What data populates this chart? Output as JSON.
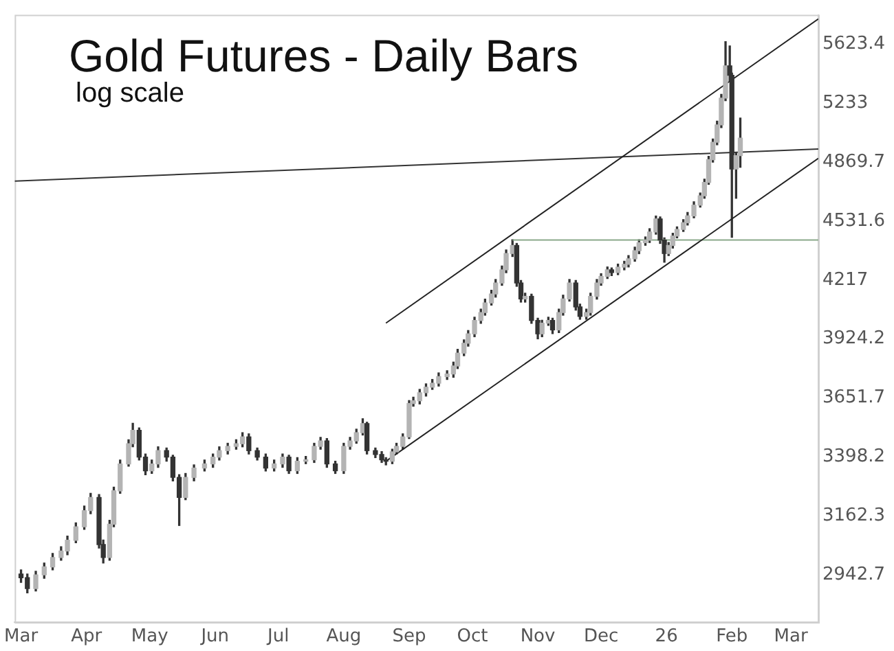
{
  "chart_data": {
    "type": "candlestick",
    "title": "Gold Futures - Daily Bars",
    "subtitle": "log scale",
    "log": true,
    "grid": false,
    "legend": false,
    "color": "#333333",
    "colors": [
      "#333333",
      "#333333",
      "#b4b4b4",
      "#b4b4b4",
      "#b4b4b4",
      "#b4b4b4",
      "#b4b4b4",
      "#b4b4b4",
      "#b4b4b4",
      "#b4b4b4",
      "#333333",
      "#333333",
      "#b4b4b4",
      "#b4b4b4",
      "#b4b4b4",
      "#b4b4b4",
      "#b4b4b4",
      "#333333",
      "#333333",
      "#b4b4b4",
      "#b4b4b4",
      "#333333",
      "#333333",
      "#333333",
      "#b4b4b4",
      "#b4b4b4",
      "#b4b4b4",
      "#b4b4b4",
      "#b4b4b4",
      "#b4b4b4",
      "#b4b4b4",
      "#b4b4b4",
      "#333333",
      "#333333",
      "#333333",
      "#b4b4b4",
      "#b4b4b4",
      "#333333",
      "#b4b4b4",
      "#b4b4b4",
      "#b4b4b4",
      "#b4b4b4",
      "#333333",
      "#333333",
      "#b4b4b4",
      "#b4b4b4",
      "#b4b4b4",
      "#b4b4b4",
      "#333333",
      "#333333",
      "#333333",
      "#333333",
      "#b4b4b4",
      "#b4b4b4",
      "#b4b4b4",
      "#b4b4b4",
      "#b4b4b4",
      "#b4b4b4",
      "#b4b4b4",
      "#b4b4b4",
      "#b4b4b4",
      "#b4b4b4",
      "#b4b4b4",
      "#b4b4b4",
      "#b4b4b4",
      "#b4b4b4",
      "#b4b4b4",
      "#b4b4b4",
      "#b4b4b4",
      "#b4b4b4",
      "#b4b4b4",
      "#b4b4b4",
      "#b4b4b4",
      "#b4b4b4",
      "#333333",
      "#333333",
      "#b4b4b4",
      "#333333",
      "#333333",
      "#b4b4b4",
      "#b4b4b4",
      "#333333",
      "#b4b4b4",
      "#b4b4b4",
      "#b4b4b4",
      "#333333",
      "#333333",
      "#b4b4b4",
      "#b4b4b4",
      "#b4b4b4",
      "#b4b4b4",
      "#b4b4b4",
      "#333333",
      "#b4b4b4",
      "#b4b4b4",
      "#b4b4b4",
      "#b4b4b4",
      "#b4b4b4",
      "#b4b4b4",
      "#b4b4b4",
      "#b4b4b4",
      "#333333",
      "#333333",
      "#b4b4b4",
      "#b4b4b4",
      "#b4b4b4",
      "#b4b4b4",
      "#b4b4b4",
      "#b4b4b4",
      "#b4b4b4",
      "#b4b4b4",
      "#b4b4b4",
      "#b4b4b4",
      "#b4b4b4",
      "#b4b4b4",
      "#b4b4b4",
      "#333333",
      "#333333",
      "#b4b4b4",
      "#b4b4b4"
    ],
    "x": [
      "2025-03-01",
      "2025-03-04",
      "2025-03-08",
      "2025-03-12",
      "2025-03-16",
      "2025-03-20",
      "2025-03-23",
      "2025-03-27",
      "2025-03-31",
      "2025-04-03",
      "2025-04-07",
      "2025-04-09",
      "2025-04-12",
      "2025-04-14",
      "2025-04-17",
      "2025-04-21",
      "2025-04-23",
      "2025-04-26",
      "2025-04-29",
      "2025-05-02",
      "2025-05-05",
      "2025-05-09",
      "2025-05-12",
      "2025-05-15",
      "2025-05-18",
      "2025-05-22",
      "2025-05-27",
      "2025-05-31",
      "2025-06-03",
      "2025-06-07",
      "2025-06-11",
      "2025-06-14",
      "2025-06-17",
      "2025-06-21",
      "2025-06-25",
      "2025-06-29",
      "2025-07-03",
      "2025-07-06",
      "2025-07-10",
      "2025-07-14",
      "2025-07-18",
      "2025-07-21",
      "2025-07-24",
      "2025-07-28",
      "2025-08-01",
      "2025-08-04",
      "2025-08-07",
      "2025-08-10",
      "2025-08-12",
      "2025-08-16",
      "2025-08-19",
      "2025-08-21",
      "2025-08-24",
      "2025-08-26",
      "2025-08-29",
      "2025-09-01",
      "2025-09-03",
      "2025-09-06",
      "2025-09-09",
      "2025-09-12",
      "2025-09-15",
      "2025-09-19",
      "2025-09-22",
      "2025-09-24",
      "2025-09-27",
      "2025-09-29",
      "2025-10-02",
      "2025-10-05",
      "2025-10-07",
      "2025-10-10",
      "2025-10-12",
      "2025-10-15",
      "2025-10-17",
      "2025-10-20",
      "2025-10-22",
      "2025-10-24",
      "2025-10-26",
      "2025-10-29",
      "2025-11-01",
      "2025-11-03",
      "2025-11-06",
      "2025-11-08",
      "2025-11-11",
      "2025-11-13",
      "2025-11-16",
      "2025-11-19",
      "2025-11-21",
      "2025-11-24",
      "2025-11-26",
      "2025-11-29",
      "2025-12-01",
      "2025-12-04",
      "2025-12-06",
      "2025-12-09",
      "2025-12-12",
      "2025-12-14",
      "2025-12-17",
      "2025-12-19",
      "2025-12-22",
      "2025-12-24",
      "2025-12-27",
      "2025-12-29",
      "2025-12-31",
      "2026-01-02",
      "2026-01-04",
      "2026-01-06",
      "2026-01-09",
      "2026-01-11",
      "2026-01-14",
      "2026-01-17",
      "2026-01-19",
      "2026-01-21",
      "2026-01-23",
      "2026-01-25",
      "2026-01-27",
      "2026-01-29",
      "2026-01-31",
      "2026-02-01",
      "2026-02-03",
      "2026-02-05"
    ],
    "ohlc": [
      [
        2945,
        2960,
        2915,
        2932
      ],
      [
        2932,
        2945,
        2878,
        2893
      ],
      [
        2893,
        2955,
        2885,
        2942
      ],
      [
        2942,
        2985,
        2930,
        2971
      ],
      [
        2971,
        3020,
        2960,
        3005
      ],
      [
        3005,
        3045,
        2995,
        3029
      ],
      [
        3029,
        3085,
        3015,
        3069
      ],
      [
        3069,
        3135,
        3060,
        3120
      ],
      [
        3120,
        3200,
        3110,
        3182
      ],
      [
        3182,
        3250,
        3170,
        3234
      ],
      [
        3234,
        3245,
        3040,
        3053
      ],
      [
        3053,
        3070,
        2985,
        3005
      ],
      [
        3005,
        3145,
        2995,
        3130
      ],
      [
        3130,
        3275,
        3120,
        3260
      ],
      [
        3260,
        3385,
        3250,
        3369
      ],
      [
        3369,
        3470,
        3360,
        3453
      ],
      [
        3453,
        3540,
        3440,
        3510
      ],
      [
        3510,
        3520,
        3385,
        3397
      ],
      [
        3397,
        3410,
        3325,
        3341
      ],
      [
        3341,
        3385,
        3330,
        3369
      ],
      [
        3369,
        3440,
        3355,
        3424
      ],
      [
        3424,
        3435,
        3380,
        3397
      ],
      [
        3397,
        3405,
        3300,
        3314
      ],
      [
        3314,
        3325,
        3125,
        3234
      ],
      [
        3234,
        3330,
        3225,
        3314
      ],
      [
        3314,
        3365,
        3300,
        3352
      ],
      [
        3352,
        3385,
        3340,
        3369
      ],
      [
        3369,
        3410,
        3355,
        3397
      ],
      [
        3397,
        3440,
        3385,
        3424
      ],
      [
        3424,
        3455,
        3410,
        3442
      ],
      [
        3442,
        3470,
        3430,
        3453
      ],
      [
        3453,
        3500,
        3440,
        3482
      ],
      [
        3482,
        3495,
        3410,
        3424
      ],
      [
        3424,
        3435,
        3385,
        3397
      ],
      [
        3397,
        3410,
        3340,
        3352
      ],
      [
        3352,
        3385,
        3340,
        3369
      ],
      [
        3369,
        3410,
        3355,
        3397
      ],
      [
        3397,
        3405,
        3330,
        3341
      ],
      [
        3341,
        3395,
        3330,
        3380
      ],
      [
        3380,
        3400,
        3370,
        3386
      ],
      [
        3386,
        3455,
        3375,
        3442
      ],
      [
        3442,
        3480,
        3430,
        3465
      ],
      [
        3465,
        3475,
        3355,
        3369
      ],
      [
        3369,
        3380,
        3330,
        3341
      ],
      [
        3341,
        3455,
        3330,
        3442
      ],
      [
        3442,
        3480,
        3430,
        3465
      ],
      [
        3465,
        3515,
        3455,
        3500
      ],
      [
        3500,
        3560,
        3490,
        3539
      ],
      [
        3539,
        3545,
        3410,
        3424
      ],
      [
        3424,
        3435,
        3395,
        3408
      ],
      [
        3408,
        3420,
        3375,
        3386
      ],
      [
        3386,
        3395,
        3365,
        3380
      ],
      [
        3380,
        3430,
        3370,
        3419
      ],
      [
        3419,
        3455,
        3410,
        3442
      ],
      [
        3442,
        3495,
        3430,
        3482
      ],
      [
        3482,
        3640,
        3475,
        3627
      ],
      [
        3627,
        3655,
        3615,
        3639
      ],
      [
        3639,
        3690,
        3625,
        3675
      ],
      [
        3675,
        3715,
        3660,
        3700
      ],
      [
        3700,
        3735,
        3690,
        3718
      ],
      [
        3718,
        3765,
        3705,
        3748
      ],
      [
        3748,
        3775,
        3735,
        3760
      ],
      [
        3760,
        3815,
        3745,
        3797
      ],
      [
        3797,
        3875,
        3785,
        3857
      ],
      [
        3857,
        3920,
        3845,
        3904
      ],
      [
        3904,
        3965,
        3890,
        3949
      ],
      [
        3949,
        4030,
        3935,
        4014
      ],
      [
        4014,
        4070,
        4000,
        4053
      ],
      [
        4053,
        4120,
        4040,
        4101
      ],
      [
        4101,
        4165,
        4090,
        4146
      ],
      [
        4146,
        4220,
        4130,
        4202
      ],
      [
        4202,
        4290,
        4190,
        4270
      ],
      [
        4270,
        4375,
        4255,
        4356
      ],
      [
        4356,
        4430,
        4340,
        4399
      ],
      [
        4399,
        4410,
        4185,
        4202
      ],
      [
        4202,
        4215,
        4105,
        4121
      ],
      [
        4121,
        4150,
        4105,
        4134
      ],
      [
        4134,
        4145,
        4000,
        4014
      ],
      [
        4014,
        4025,
        3925,
        3949
      ],
      [
        3949,
        4015,
        3935,
        4001
      ],
      [
        4001,
        4030,
        3990,
        4014
      ],
      [
        4014,
        4025,
        3950,
        3968
      ],
      [
        3968,
        4070,
        3955,
        4053
      ],
      [
        4053,
        4140,
        4040,
        4121
      ],
      [
        4121,
        4220,
        4110,
        4202
      ],
      [
        4202,
        4215,
        4065,
        4081
      ],
      [
        4081,
        4095,
        4020,
        4034
      ],
      [
        4034,
        4070,
        4020,
        4053
      ],
      [
        4053,
        4150,
        4040,
        4134
      ],
      [
        4134,
        4220,
        4120,
        4202
      ],
      [
        4202,
        4250,
        4190,
        4236
      ],
      [
        4236,
        4285,
        4225,
        4270
      ],
      [
        4270,
        4280,
        4240,
        4256
      ],
      [
        4256,
        4300,
        4245,
        4284
      ],
      [
        4284,
        4315,
        4270,
        4299
      ],
      [
        4299,
        4345,
        4285,
        4328
      ],
      [
        4328,
        4390,
        4315,
        4371
      ],
      [
        4371,
        4430,
        4355,
        4414
      ],
      [
        4414,
        4445,
        4400,
        4428
      ],
      [
        4428,
        4490,
        4415,
        4472
      ],
      [
        4472,
        4560,
        4460,
        4544
      ],
      [
        4544,
        4555,
        4410,
        4428
      ],
      [
        4428,
        4440,
        4310,
        4356
      ],
      [
        4356,
        4415,
        4345,
        4399
      ],
      [
        4399,
        4465,
        4385,
        4450
      ],
      [
        4450,
        4500,
        4440,
        4486
      ],
      [
        4486,
        4540,
        4475,
        4523
      ],
      [
        4523,
        4580,
        4510,
        4561
      ],
      [
        4561,
        4640,
        4550,
        4621
      ],
      [
        4621,
        4690,
        4610,
        4674
      ],
      [
        4674,
        4770,
        4660,
        4751
      ],
      [
        4751,
        4905,
        4740,
        4885
      ],
      [
        4885,
        5010,
        4870,
        4990
      ],
      [
        4990,
        5120,
        4975,
        5097
      ],
      [
        5097,
        5290,
        5080,
        5266
      ],
      [
        5266,
        5642,
        5250,
        5478
      ],
      [
        5478,
        5613,
        5380,
        5415
      ],
      [
        5415,
        5430,
        4443,
        4830
      ],
      [
        4830,
        4930,
        4660,
        4909
      ],
      [
        4909,
        5140,
        4840,
        5015
      ]
    ],
    "series": [
      {
        "type": "line",
        "color": "#222222",
        "x": [
          "2025-08-21",
          "2026-03-14"
        ],
        "values": [
          4001,
          5801
        ]
      },
      {
        "type": "line",
        "color": "#222222",
        "x": [
          "2025-08-21",
          "2026-03-14"
        ],
        "values": [
          3380,
          4893
        ]
      },
      {
        "type": "line",
        "color": "#8aa88a",
        "x": [
          "2025-10-20",
          "2026-03-14"
        ],
        "values": [
          4428,
          4428
        ]
      },
      {
        "type": "line",
        "color": "#333333",
        "x": [
          "2025-02-26",
          "2026-03-14"
        ],
        "values": [
          4759,
          4949
        ]
      }
    ],
    "xlim": [
      "2025-02-26",
      "2026-03-14"
    ],
    "xticks": [
      {
        "value": "2025-03-01",
        "label": "Mar"
      },
      {
        "value": "2025-04-01",
        "label": "Apr"
      },
      {
        "value": "2025-05-01",
        "label": "May"
      },
      {
        "value": "2025-06-01",
        "label": "Jun"
      },
      {
        "value": "2025-07-01",
        "label": "Jul"
      },
      {
        "value": "2025-08-01",
        "label": "Aug"
      },
      {
        "value": "2025-09-01",
        "label": "Sep"
      },
      {
        "value": "2025-10-01",
        "label": "Oct"
      },
      {
        "value": "2025-11-01",
        "label": "Nov"
      },
      {
        "value": "2025-12-01",
        "label": "Dec"
      },
      {
        "value": "2026-01-01",
        "label": "26"
      },
      {
        "value": "2026-02-01",
        "label": "Feb"
      },
      {
        "value": "2026-03-01",
        "label": "Mar"
      }
    ],
    "ylim": [
      2777,
      5830
    ],
    "yticks": [
      2942.7,
      3162.3,
      3398.2,
      3651.7,
      3924.2,
      4217,
      4531.6,
      4869.7,
      5233,
      5623.4
    ]
  }
}
